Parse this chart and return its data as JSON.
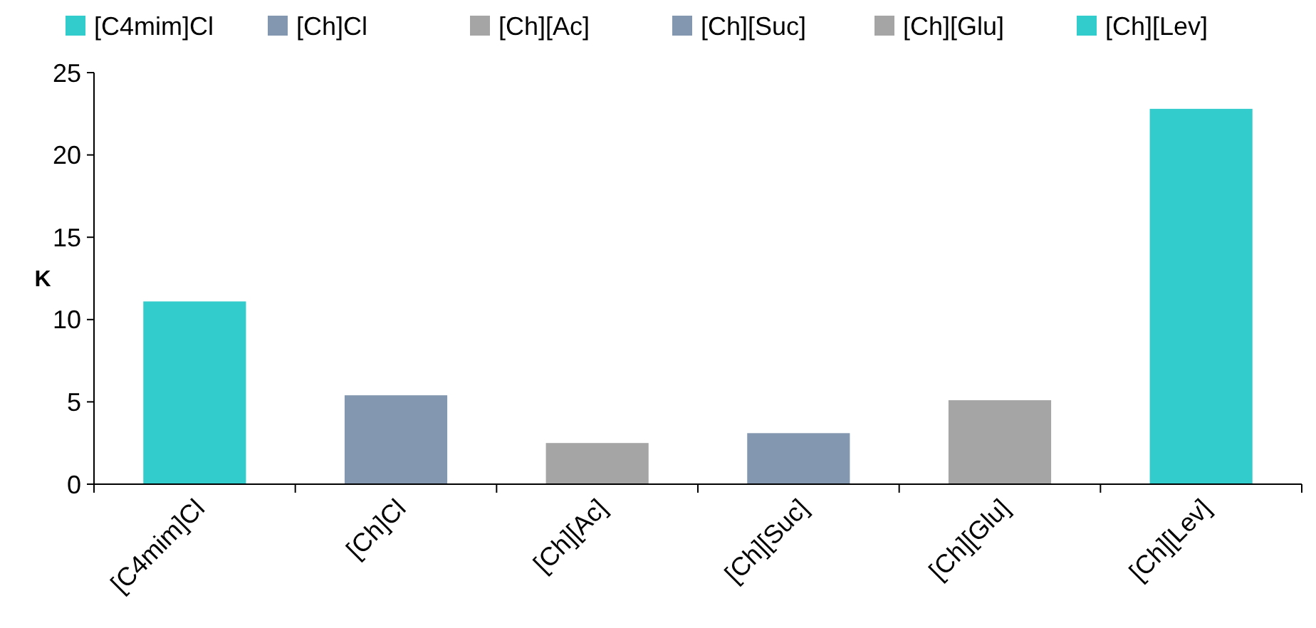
{
  "chart_data": {
    "type": "bar",
    "ylabel": "K",
    "categories": [
      "[C4mim]Cl",
      "[Ch]Cl",
      "[Ch][Ac]",
      "[Ch][Suc]",
      "[Ch][Glu]",
      "[Ch][Lev]"
    ],
    "series": [
      {
        "name": "[C4mim]Cl",
        "color": "#33cccc",
        "values": [
          11.1,
          null,
          null,
          null,
          null,
          null
        ]
      },
      {
        "name": "[Ch]Cl",
        "color": "#8497b0",
        "values": [
          null,
          5.4,
          null,
          null,
          null,
          null
        ]
      },
      {
        "name": "[Ch][Ac]",
        "color": "#a5a5a5",
        "values": [
          null,
          null,
          2.5,
          null,
          null,
          null
        ]
      },
      {
        "name": "[Ch][Suc]",
        "color": "#8497b0",
        "values": [
          null,
          null,
          null,
          3.1,
          null,
          null
        ]
      },
      {
        "name": "[Ch][Glu]",
        "color": "#a5a5a5",
        "values": [
          null,
          null,
          null,
          null,
          5.1,
          null
        ]
      },
      {
        "name": "[Ch][Lev]",
        "color": "#33cccc",
        "values": [
          null,
          null,
          null,
          null,
          null,
          22.8
        ]
      }
    ],
    "ylim": [
      0,
      25
    ],
    "yticks": [
      0,
      5,
      10,
      15,
      20,
      25
    ],
    "grid": false,
    "legend": "top"
  }
}
